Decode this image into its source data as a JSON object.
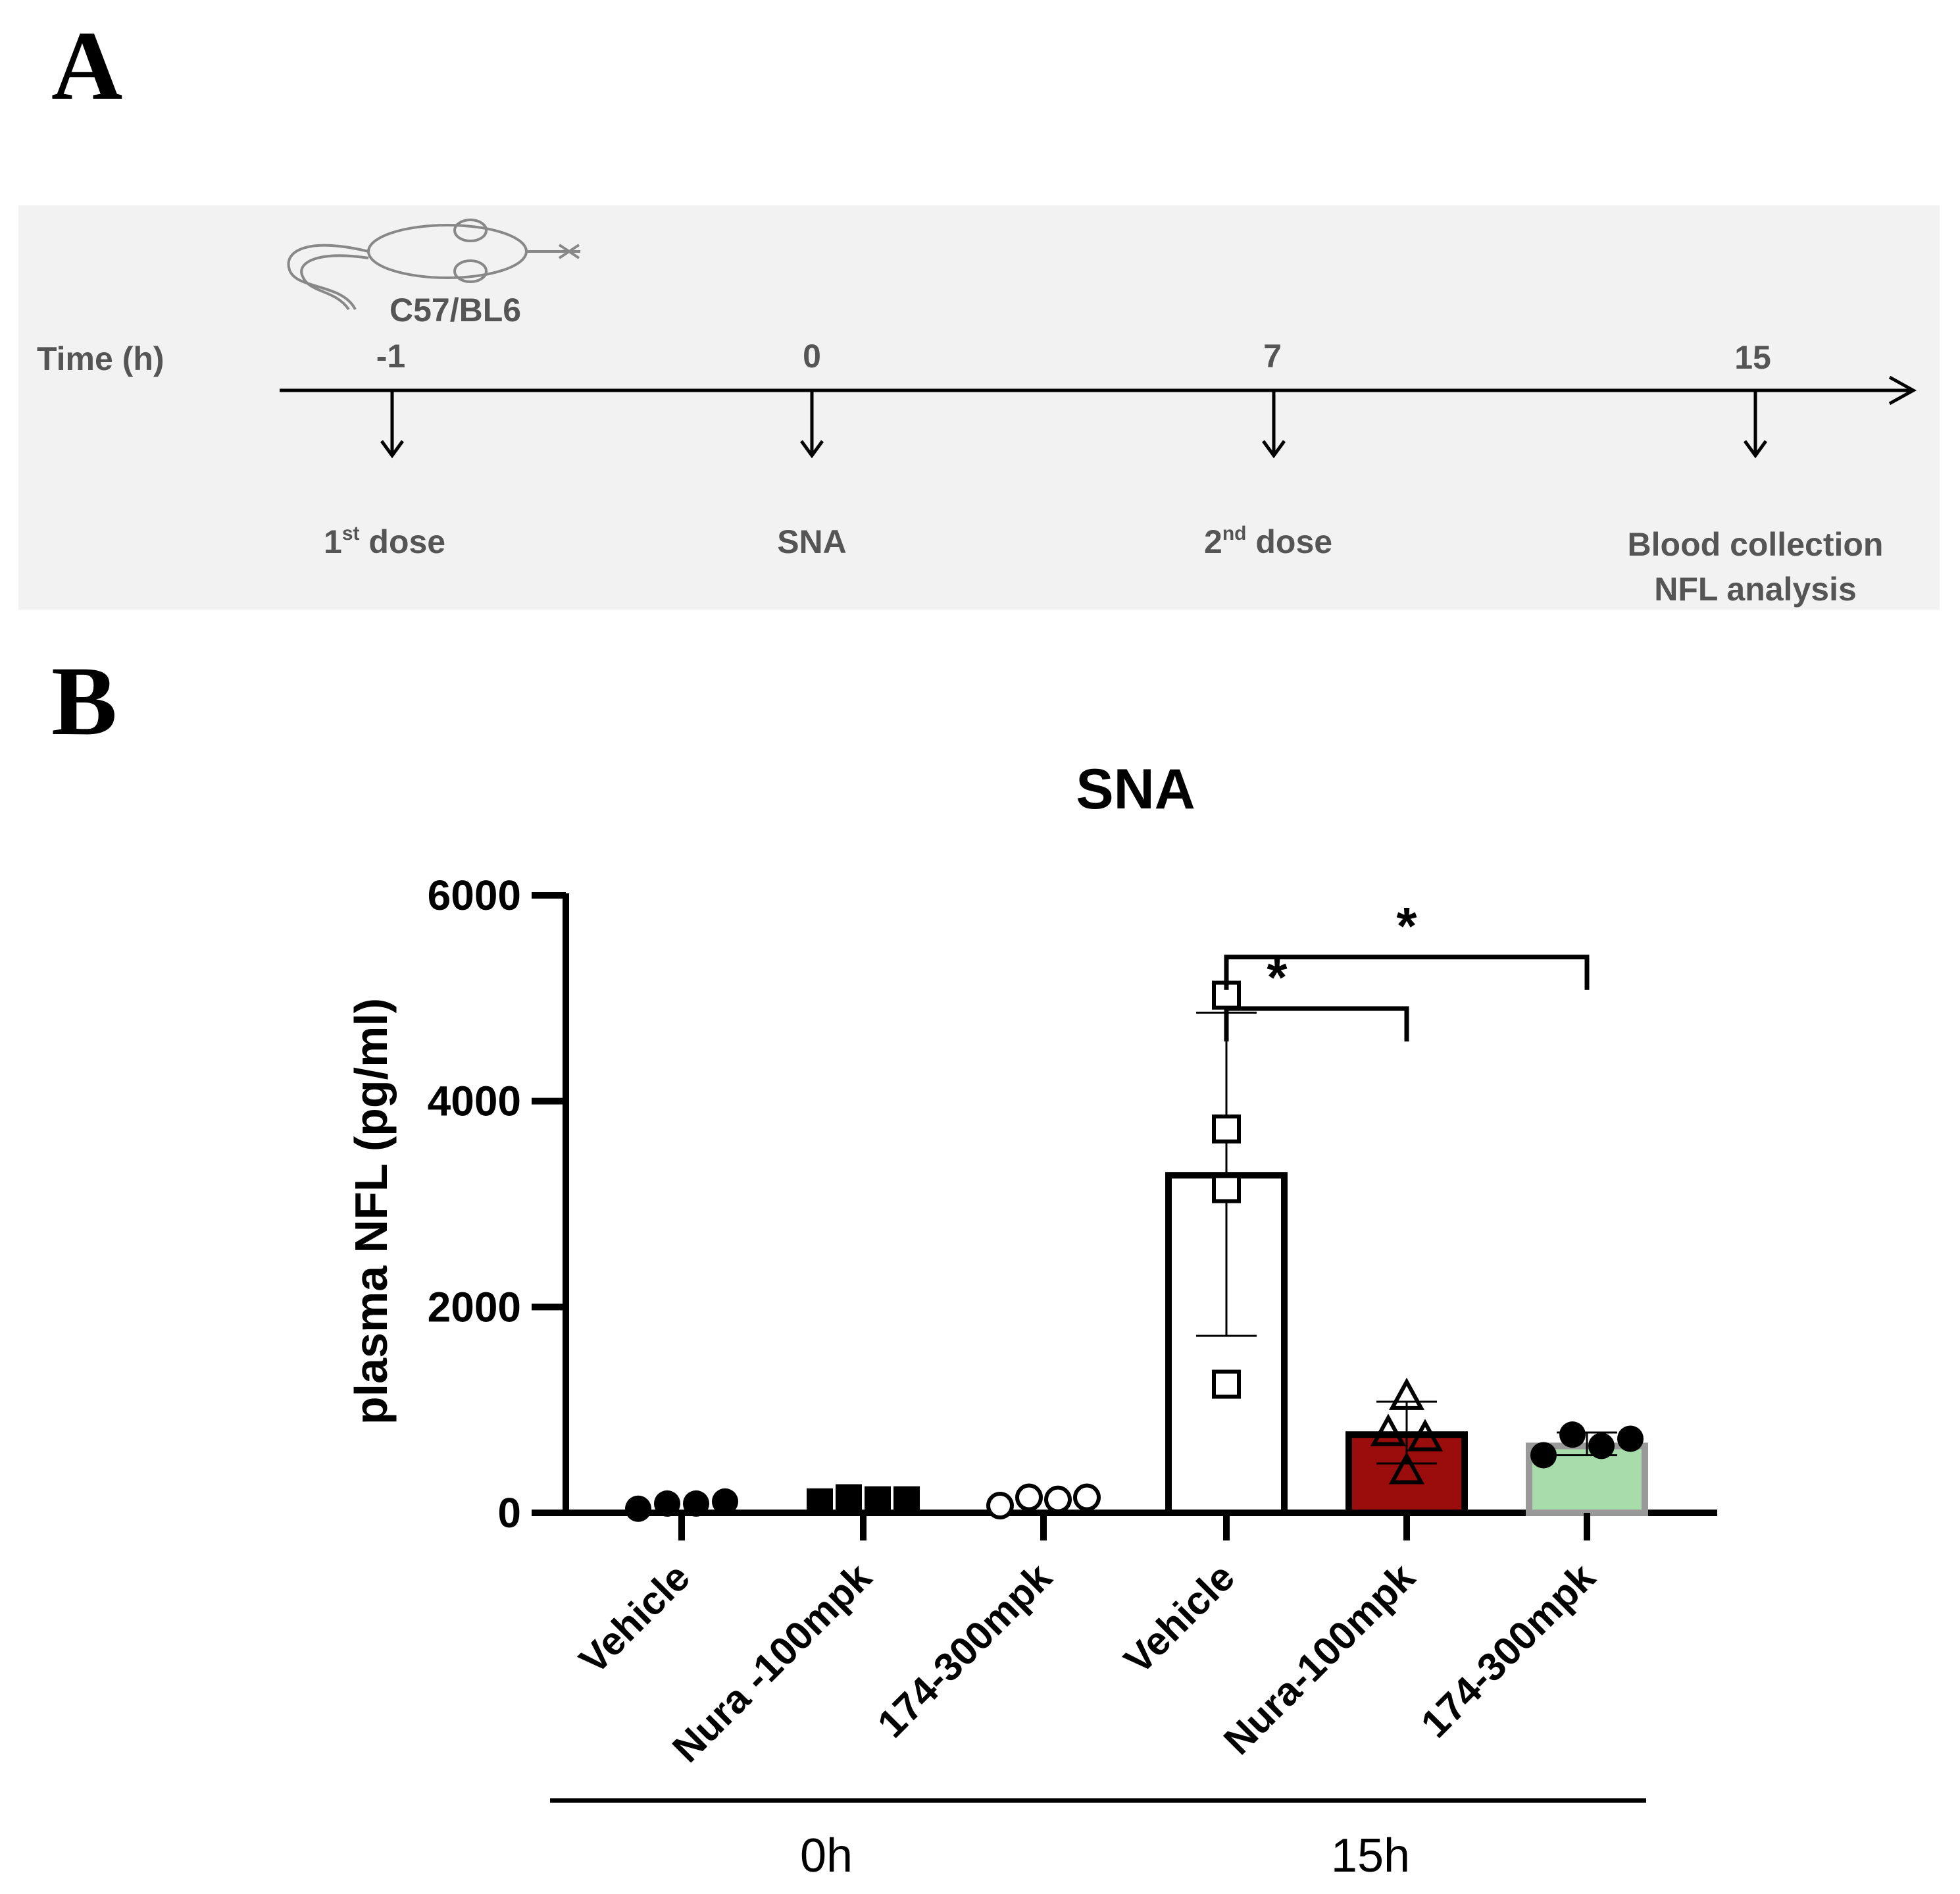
{
  "panel_a": {
    "label": "A",
    "strain": "C57/BL6",
    "axis_label": "Time (h)",
    "timepoints": [
      {
        "time": "-1",
        "event": "dose",
        "superscript": "st",
        "prefix": "1",
        "line2": ""
      },
      {
        "time": "0",
        "event": "SNA",
        "superscript": "",
        "prefix": "",
        "line2": ""
      },
      {
        "time": "7",
        "event": "dose",
        "superscript": "nd",
        "prefix": "2",
        "line2": ""
      },
      {
        "time": "15",
        "event": "Blood collection",
        "superscript": "",
        "prefix": "",
        "line2": "NFL analysis"
      }
    ],
    "colors": {
      "background": "#f2f2f2",
      "line": "#000000"
    }
  },
  "panel_b": {
    "label": "B"
  },
  "chart_data": {
    "type": "bar",
    "title": "SNA",
    "xlabel": "",
    "ylabel": "plasma NFL (pg/ml)",
    "ylim": [
      0,
      6000
    ],
    "yticks": [
      0,
      2000,
      4000,
      6000
    ],
    "categories": [
      "Vehicle",
      "Nura -100mpk",
      "174-300mpk",
      "Vehicle",
      "Nura-100mpk",
      "174-300mpk"
    ],
    "groups": [
      {
        "label": "0h",
        "categories": [
          0,
          1,
          2
        ]
      },
      {
        "label": "15h",
        "categories": [
          3,
          4,
          5
        ]
      }
    ],
    "values": [
      80,
      120,
      110,
      3280,
      760,
      650
    ],
    "error_low": [
      80,
      120,
      110,
      1720,
      480,
      560
    ],
    "error_high": [
      80,
      120,
      110,
      4860,
      1080,
      780
    ],
    "points": [
      [
        40,
        90,
        90,
        110
      ],
      [
        110,
        150,
        130,
        130
      ],
      [
        70,
        150,
        130,
        150
      ],
      [
        5030,
        3730,
        3150,
        1250
      ],
      [
        1120,
        770,
        720,
        400
      ],
      [
        560,
        760,
        650,
        720
      ]
    ],
    "markers": [
      "filled-circle",
      "filled-square",
      "open-circle",
      "open-square",
      "open-triangle",
      "filled-circle"
    ],
    "bar_fills": [
      "none",
      "none",
      "none",
      "#ffffff",
      "#9b0d0d",
      "#a8dcaa"
    ],
    "bar_strokes": [
      "#000000",
      "#000000",
      "#000000",
      "#000000",
      "#000000",
      "#999999"
    ],
    "significance": [
      {
        "from": 3,
        "to": 5,
        "label": "*",
        "level": 5400
      },
      {
        "from": 3,
        "to": 4,
        "label": "*",
        "level": 4900
      }
    ]
  }
}
